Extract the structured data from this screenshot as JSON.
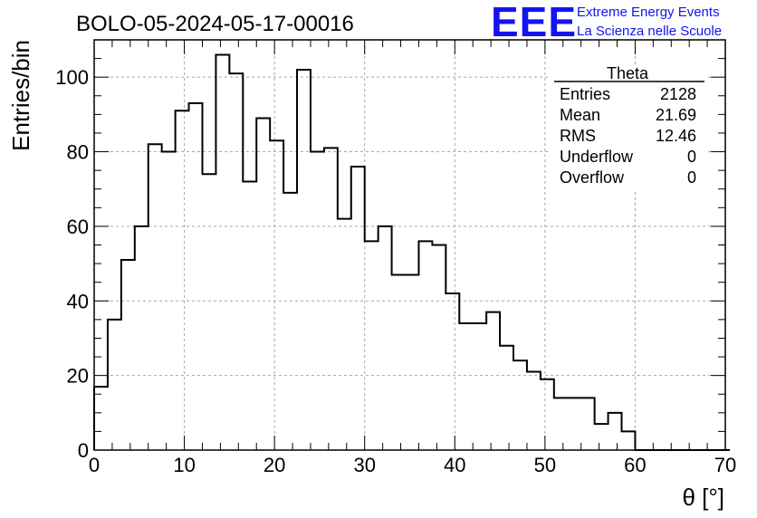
{
  "title": "BOLO-05-2024-05-17-00016",
  "logo": {
    "mark": "EEE",
    "line1": "Extreme Energy Events",
    "line2": "La Scienza nelle Scuole",
    "color": "#1414f0"
  },
  "stats": {
    "name": "Theta",
    "rows": [
      {
        "label": "Entries",
        "value": "2128"
      },
      {
        "label": "Mean",
        "value": "21.69"
      },
      {
        "label": "RMS",
        "value": "12.46"
      },
      {
        "label": "Underflow",
        "value": "0"
      },
      {
        "label": "Overflow",
        "value": "0"
      }
    ]
  },
  "chart_data": {
    "type": "histogram",
    "xlabel": "θ [°]",
    "ylabel": "Entries/bin",
    "xlim": [
      0,
      70
    ],
    "ylim": [
      0,
      110
    ],
    "grid": true,
    "legend_position": "top-right",
    "x_ticks": [
      0,
      10,
      20,
      30,
      40,
      50,
      60,
      70
    ],
    "y_ticks": [
      0,
      20,
      40,
      60,
      80,
      100
    ],
    "bin_width": 1.5,
    "bin_edges_start": 0,
    "values": [
      17,
      35,
      51,
      60,
      82,
      80,
      91,
      93,
      74,
      106,
      101,
      72,
      89,
      83,
      69,
      102,
      80,
      81,
      62,
      76,
      56,
      60,
      47,
      47,
      56,
      55,
      42,
      34,
      34,
      37,
      28,
      24,
      21,
      19,
      14,
      14,
      14,
      7,
      10,
      5,
      0,
      0,
      0,
      0,
      0,
      0,
      0
    ]
  }
}
